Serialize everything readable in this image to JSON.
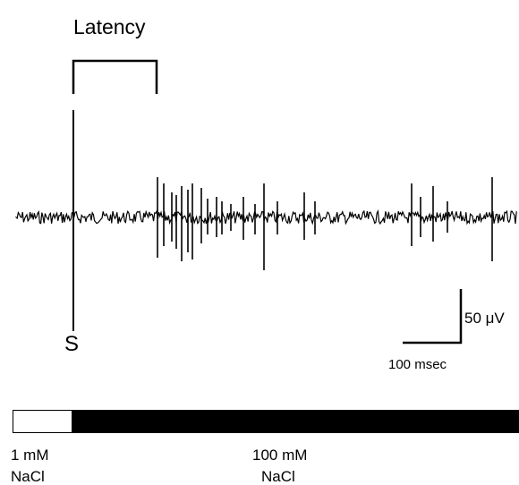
{
  "header": {
    "title": "Latency"
  },
  "labels": {
    "stimulus": "S",
    "scale_voltage": "50 μV",
    "scale_time": "100 msec"
  },
  "solutions": [
    {
      "concentration": "1 mM",
      "name": "NaCl"
    },
    {
      "concentration": "100 mM",
      "name": "NaCl"
    }
  ]
}
